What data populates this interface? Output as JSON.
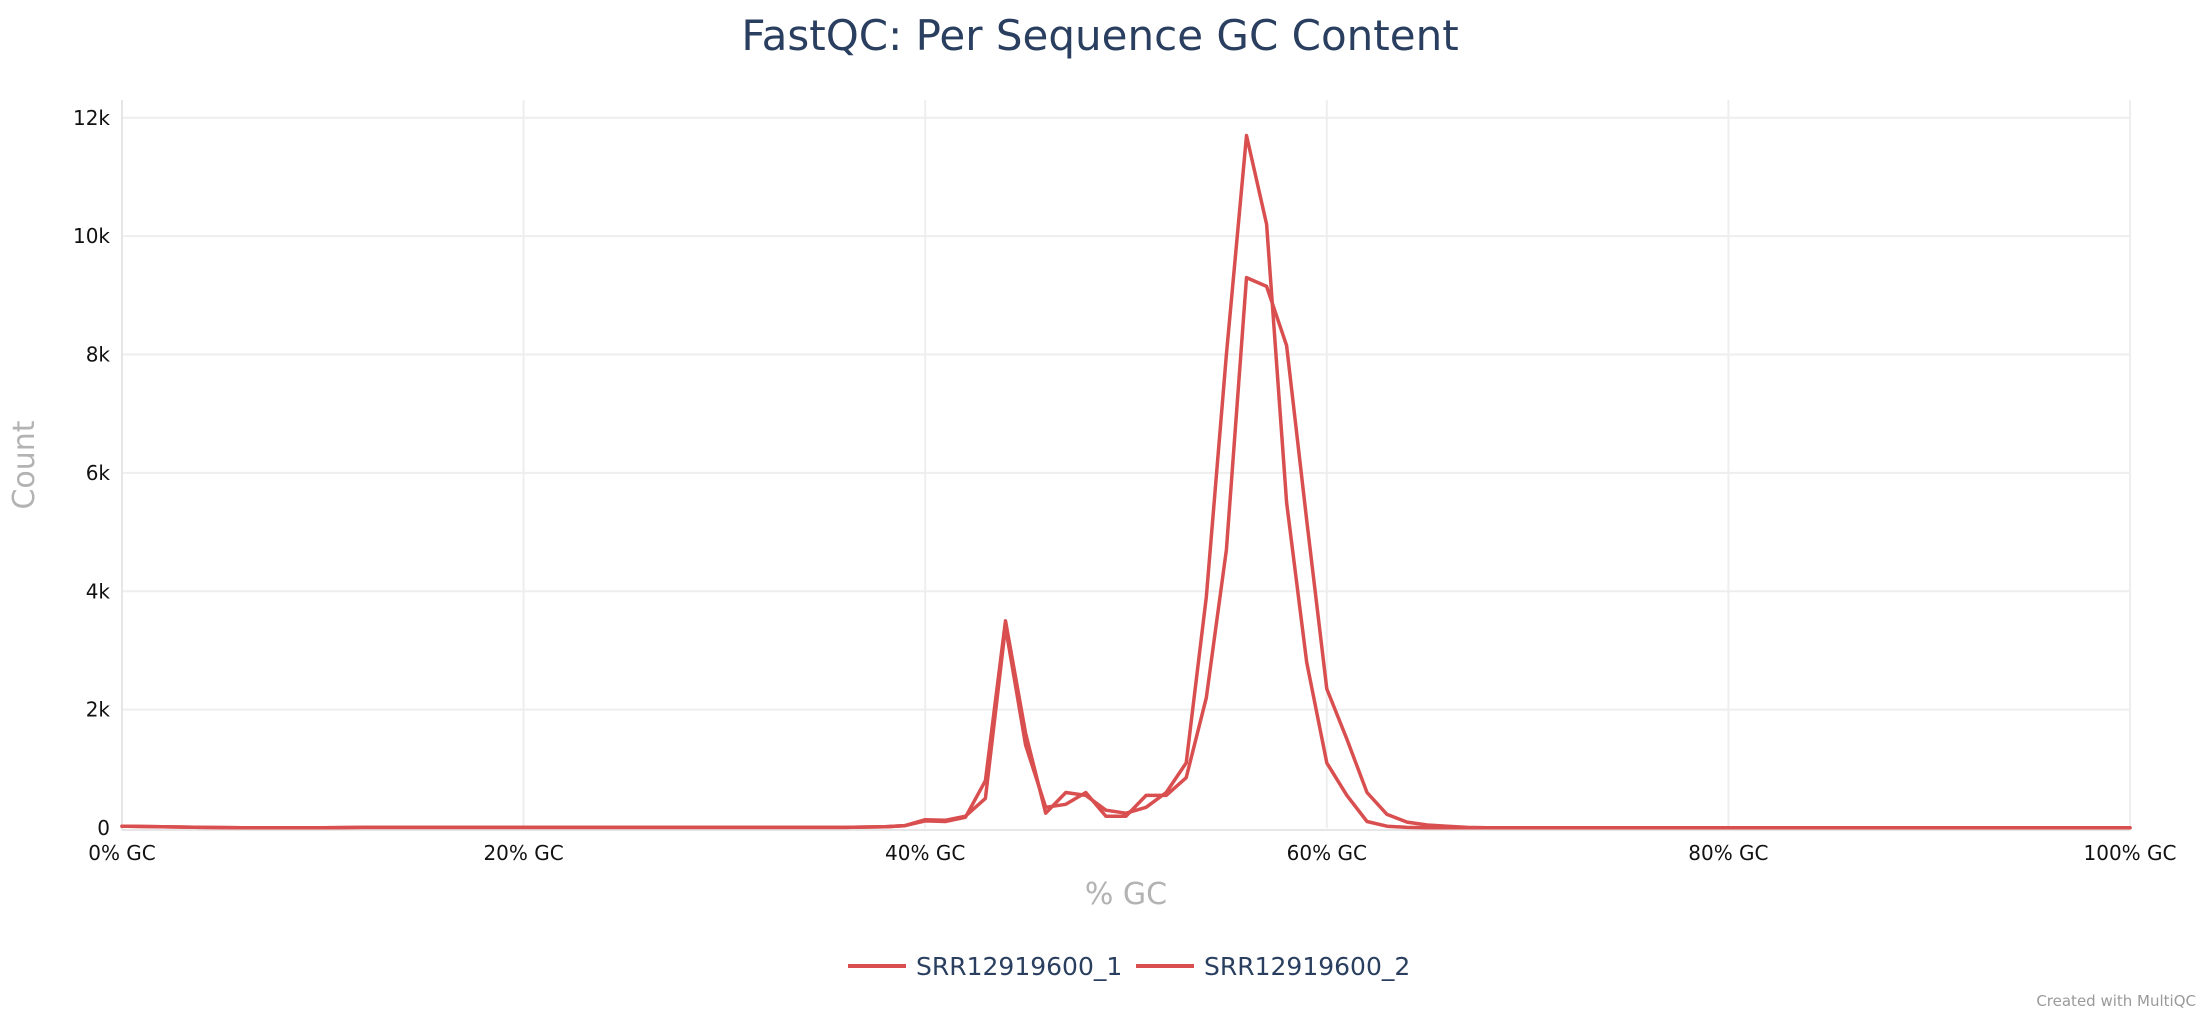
{
  "chart_data": {
    "type": "line",
    "title": "FastQC: Per Sequence GC Content",
    "xlabel": "% GC",
    "ylabel": "Count",
    "xlim": [
      0,
      100
    ],
    "ylim": [
      0,
      12300
    ],
    "x_ticks": [
      {
        "value": 0,
        "label": "0% GC"
      },
      {
        "value": 20,
        "label": "20% GC"
      },
      {
        "value": 40,
        "label": "40% GC"
      },
      {
        "value": 60,
        "label": "60% GC"
      },
      {
        "value": 80,
        "label": "80% GC"
      },
      {
        "value": 100,
        "label": "100% GC"
      }
    ],
    "y_ticks": [
      {
        "value": 0,
        "label": "0"
      },
      {
        "value": 2000,
        "label": "2k"
      },
      {
        "value": 4000,
        "label": "4k"
      },
      {
        "value": 6000,
        "label": "6k"
      },
      {
        "value": 8000,
        "label": "8k"
      },
      {
        "value": 10000,
        "label": "10k"
      },
      {
        "value": 12000,
        "label": "12k"
      }
    ],
    "grid": true,
    "legend_position": "bottom-center",
    "series": [
      {
        "name": "SRR12919600_1",
        "color": "#d94f4f",
        "x": [
          0,
          2,
          4,
          6,
          8,
          10,
          12,
          14,
          16,
          18,
          20,
          22,
          24,
          26,
          28,
          30,
          32,
          34,
          36,
          38,
          39,
          40,
          41,
          42,
          43,
          44,
          45,
          46,
          47,
          48,
          49,
          50,
          51,
          52,
          53,
          54,
          55,
          56,
          57,
          58,
          59,
          60,
          61,
          62,
          63,
          64,
          65,
          66,
          67,
          68,
          70,
          72,
          74,
          76,
          78,
          80,
          82,
          84,
          86,
          88,
          90,
          92,
          94,
          96,
          98,
          100
        ],
        "y": [
          30,
          20,
          10,
          5,
          5,
          5,
          10,
          10,
          10,
          10,
          10,
          10,
          10,
          10,
          10,
          10,
          10,
          10,
          10,
          20,
          40,
          120,
          110,
          180,
          800,
          3500,
          1600,
          250,
          600,
          550,
          300,
          250,
          350,
          600,
          1100,
          3900,
          8000,
          11700,
          10200,
          5500,
          2800,
          1100,
          550,
          110,
          30,
          10,
          5,
          5,
          5,
          5,
          5,
          5,
          5,
          5,
          5,
          5,
          5,
          5,
          5,
          5,
          5,
          5,
          5,
          5,
          5,
          5
        ]
      },
      {
        "name": "SRR12919600_2",
        "color": "#d94f4f",
        "x": [
          0,
          2,
          4,
          6,
          8,
          10,
          12,
          14,
          16,
          18,
          20,
          22,
          24,
          26,
          28,
          30,
          32,
          34,
          36,
          38,
          39,
          40,
          41,
          42,
          43,
          44,
          45,
          46,
          47,
          48,
          49,
          50,
          51,
          52,
          53,
          54,
          55,
          56,
          57,
          58,
          59,
          60,
          61,
          62,
          63,
          64,
          65,
          66,
          67,
          68,
          70,
          72,
          74,
          76,
          78,
          80,
          82,
          84,
          86,
          88,
          90,
          92,
          94,
          96,
          98,
          100
        ],
        "y": [
          30,
          20,
          10,
          5,
          5,
          5,
          10,
          10,
          10,
          10,
          10,
          10,
          10,
          10,
          10,
          10,
          10,
          10,
          10,
          20,
          40,
          140,
          130,
          200,
          500,
          3400,
          1400,
          350,
          400,
          600,
          200,
          200,
          550,
          550,
          850,
          2200,
          4700,
          9300,
          9150,
          8150,
          5200,
          2350,
          1500,
          600,
          230,
          100,
          50,
          30,
          10,
          5,
          5,
          5,
          5,
          5,
          5,
          5,
          5,
          5,
          5,
          5,
          5,
          5,
          5,
          5,
          5,
          5
        ]
      }
    ]
  },
  "footer": {
    "credit": "Created with MultiQC"
  }
}
